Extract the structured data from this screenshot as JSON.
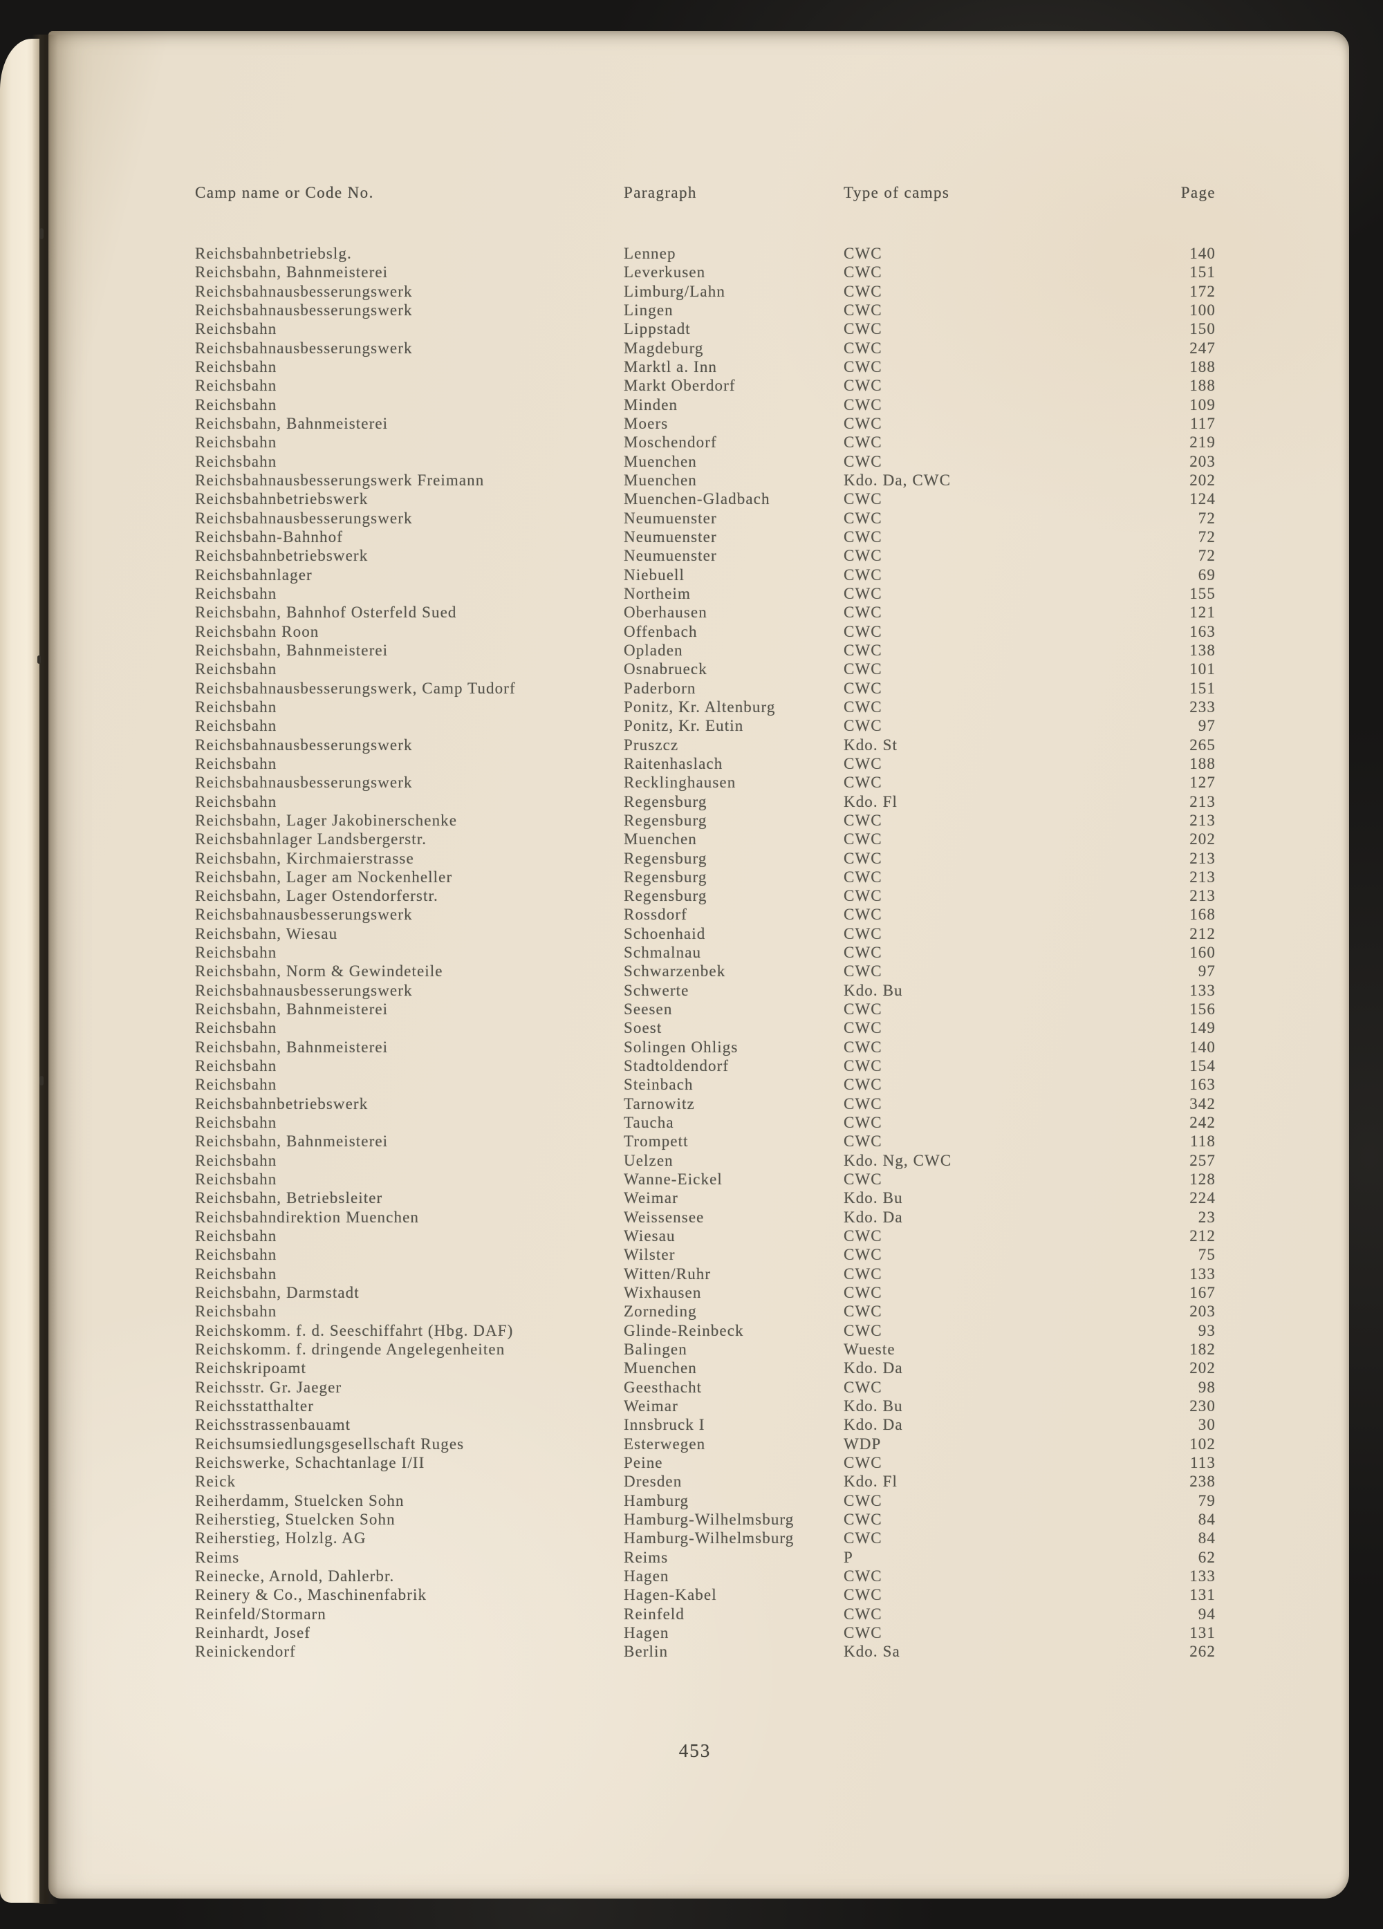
{
  "page": {
    "folio": "453"
  },
  "table": {
    "headers": [
      "Camp name or Code No.",
      "Paragraph",
      "Type of camps",
      "Page"
    ],
    "rows": [
      {
        "name": "Reichsbahnbetriebslg.",
        "paragraph": "Lennep",
        "type": "CWC",
        "page": "140"
      },
      {
        "name": "Reichsbahn, Bahnmeisterei",
        "paragraph": "Leverkusen",
        "type": "CWC",
        "page": "151"
      },
      {
        "name": "Reichsbahnausbesserungswerk",
        "paragraph": "Limburg/Lahn",
        "type": "CWC",
        "page": "172"
      },
      {
        "name": "Reichsbahnausbesserungswerk",
        "paragraph": "Lingen",
        "type": "CWC",
        "page": "100"
      },
      {
        "name": "Reichsbahn",
        "paragraph": "Lippstadt",
        "type": "CWC",
        "page": "150"
      },
      {
        "name": "Reichsbahnausbesserungswerk",
        "paragraph": "Magdeburg",
        "type": "CWC",
        "page": "247"
      },
      {
        "name": "Reichsbahn",
        "paragraph": "Marktl a. Inn",
        "type": "CWC",
        "page": "188"
      },
      {
        "name": "Reichsbahn",
        "paragraph": "Markt Oberdorf",
        "type": "CWC",
        "page": "188"
      },
      {
        "name": "Reichsbahn",
        "paragraph": "Minden",
        "type": "CWC",
        "page": "109"
      },
      {
        "name": "Reichsbahn, Bahnmeisterei",
        "paragraph": "Moers",
        "type": "CWC",
        "page": "117"
      },
      {
        "name": "Reichsbahn",
        "paragraph": "Moschendorf",
        "type": "CWC",
        "page": "219"
      },
      {
        "name": "Reichsbahn",
        "paragraph": "Muenchen",
        "type": "CWC",
        "page": "203"
      },
      {
        "name": "Reichsbahnausbesserungswerk Freimann",
        "paragraph": "Muenchen",
        "type": "Kdo. Da, CWC",
        "page": "202"
      },
      {
        "name": "Reichsbahnbetriebswerk",
        "paragraph": "Muenchen-Gladbach",
        "type": "CWC",
        "page": "124"
      },
      {
        "name": "Reichsbahnausbesserungswerk",
        "paragraph": "Neumuenster",
        "type": "CWC",
        "page": "72"
      },
      {
        "name": "Reichsbahn-Bahnhof",
        "paragraph": "Neumuenster",
        "type": "CWC",
        "page": "72"
      },
      {
        "name": "Reichsbahnbetriebswerk",
        "paragraph": "Neumuenster",
        "type": "CWC",
        "page": "72"
      },
      {
        "name": "Reichsbahnlager",
        "paragraph": "Niebuell",
        "type": "CWC",
        "page": "69"
      },
      {
        "name": "Reichsbahn",
        "paragraph": "Northeim",
        "type": "CWC",
        "page": "155"
      },
      {
        "name": "Reichsbahn, Bahnhof Osterfeld Sued",
        "paragraph": "Oberhausen",
        "type": "CWC",
        "page": "121"
      },
      {
        "name": "Reichsbahn Roon",
        "paragraph": "Offenbach",
        "type": "CWC",
        "page": "163"
      },
      {
        "name": "Reichsbahn, Bahnmeisterei",
        "paragraph": "Opladen",
        "type": "CWC",
        "page": "138"
      },
      {
        "name": "Reichsbahn",
        "paragraph": "Osnabrueck",
        "type": "CWC",
        "page": "101"
      },
      {
        "name": "Reichsbahnausbesserungswerk, Camp Tudorf",
        "paragraph": "Paderborn",
        "type": "CWC",
        "page": "151"
      },
      {
        "name": "Reichsbahn",
        "paragraph": "Ponitz, Kr. Altenburg",
        "type": "CWC",
        "page": "233"
      },
      {
        "name": "Reichsbahn",
        "paragraph": "Ponitz, Kr. Eutin",
        "type": "CWC",
        "page": "97"
      },
      {
        "name": "Reichsbahnausbesserungswerk",
        "paragraph": "Pruszcz",
        "type": "Kdo. St",
        "page": "265"
      },
      {
        "name": "Reichsbahn",
        "paragraph": "Raitenhaslach",
        "type": "CWC",
        "page": "188"
      },
      {
        "name": "Reichsbahnausbesserungswerk",
        "paragraph": "Recklinghausen",
        "type": "CWC",
        "page": "127"
      },
      {
        "name": "Reichsbahn",
        "paragraph": "Regensburg",
        "type": "Kdo. Fl",
        "page": "213"
      },
      {
        "name": "Reichsbahn, Lager Jakobinerschenke",
        "paragraph": "Regensburg",
        "type": "CWC",
        "page": "213"
      },
      {
        "name": "Reichsbahnlager Landsbergerstr.",
        "paragraph": "Muenchen",
        "type": "CWC",
        "page": "202"
      },
      {
        "name": "Reichsbahn, Kirchmaierstrasse",
        "paragraph": "Regensburg",
        "type": "CWC",
        "page": "213"
      },
      {
        "name": "Reichsbahn, Lager am Nockenheller",
        "paragraph": "Regensburg",
        "type": "CWC",
        "page": "213"
      },
      {
        "name": "Reichsbahn, Lager Ostendorferstr.",
        "paragraph": "Regensburg",
        "type": "CWC",
        "page": "213"
      },
      {
        "name": "Reichsbahnausbesserungswerk",
        "paragraph": "Rossdorf",
        "type": "CWC",
        "page": "168"
      },
      {
        "name": "Reichsbahn, Wiesau",
        "paragraph": "Schoenhaid",
        "type": "CWC",
        "page": "212"
      },
      {
        "name": "Reichsbahn",
        "paragraph": "Schmalnau",
        "type": "CWC",
        "page": "160"
      },
      {
        "name": "Reichsbahn, Norm & Gewindeteile",
        "paragraph": "Schwarzenbek",
        "type": "CWC",
        "page": "97"
      },
      {
        "name": "Reichsbahnausbesserungswerk",
        "paragraph": "Schwerte",
        "type": "Kdo. Bu",
        "page": "133"
      },
      {
        "name": "Reichsbahn, Bahnmeisterei",
        "paragraph": "Seesen",
        "type": "CWC",
        "page": "156"
      },
      {
        "name": "Reichsbahn",
        "paragraph": "Soest",
        "type": "CWC",
        "page": "149"
      },
      {
        "name": "Reichsbahn, Bahnmeisterei",
        "paragraph": "Solingen Ohligs",
        "type": "CWC",
        "page": "140"
      },
      {
        "name": "Reichsbahn",
        "paragraph": "Stadtoldendorf",
        "type": "CWC",
        "page": "154"
      },
      {
        "name": "Reichsbahn",
        "paragraph": "Steinbach",
        "type": "CWC",
        "page": "163"
      },
      {
        "name": "Reichsbahnbetriebswerk",
        "paragraph": "Tarnowitz",
        "type": "CWC",
        "page": "342"
      },
      {
        "name": "Reichsbahn",
        "paragraph": "Taucha",
        "type": "CWC",
        "page": "242"
      },
      {
        "name": "Reichsbahn, Bahnmeisterei",
        "paragraph": "Trompett",
        "type": "CWC",
        "page": "118"
      },
      {
        "name": "Reichsbahn",
        "paragraph": "Uelzen",
        "type": "Kdo. Ng, CWC",
        "page": "257"
      },
      {
        "name": "Reichsbahn",
        "paragraph": "Wanne-Eickel",
        "type": "CWC",
        "page": "128"
      },
      {
        "name": "Reichsbahn, Betriebsleiter",
        "paragraph": "Weimar",
        "type": "Kdo. Bu",
        "page": "224"
      },
      {
        "name": "Reichsbahndirektion Muenchen",
        "paragraph": "Weissensee",
        "type": "Kdo. Da",
        "page": "23"
      },
      {
        "name": "Reichsbahn",
        "paragraph": "Wiesau",
        "type": "CWC",
        "page": "212"
      },
      {
        "name": "Reichsbahn",
        "paragraph": "Wilster",
        "type": "CWC",
        "page": "75"
      },
      {
        "name": "Reichsbahn",
        "paragraph": "Witten/Ruhr",
        "type": "CWC",
        "page": "133"
      },
      {
        "name": "Reichsbahn, Darmstadt",
        "paragraph": "Wixhausen",
        "type": "CWC",
        "page": "167"
      },
      {
        "name": "Reichsbahn",
        "paragraph": "Zorneding",
        "type": "CWC",
        "page": "203"
      },
      {
        "name": "Reichskomm. f. d. Seeschiffahrt (Hbg. DAF)",
        "paragraph": "Glinde-Reinbeck",
        "type": "CWC",
        "page": "93"
      },
      {
        "name": "Reichskomm. f. dringende Angelegenheiten",
        "paragraph": "Balingen",
        "type": "Wueste",
        "page": "182"
      },
      {
        "name": "Reichskripoamt",
        "paragraph": "Muenchen",
        "type": "Kdo. Da",
        "page": "202"
      },
      {
        "name": "Reichsstr. Gr. Jaeger",
        "paragraph": "Geesthacht",
        "type": "CWC",
        "page": "98"
      },
      {
        "name": "Reichsstatthalter",
        "paragraph": "Weimar",
        "type": "Kdo. Bu",
        "page": "230"
      },
      {
        "name": "Reichsstrassenbauamt",
        "paragraph": "Innsbruck I",
        "type": "Kdo. Da",
        "page": "30"
      },
      {
        "name": "Reichsumsiedlungsgesellschaft Ruges",
        "paragraph": "Esterwegen",
        "type": "WDP",
        "page": "102"
      },
      {
        "name": "Reichswerke, Schachtanlage I/II",
        "paragraph": "Peine",
        "type": "CWC",
        "page": "113"
      },
      {
        "name": "Reick",
        "paragraph": "Dresden",
        "type": "Kdo. Fl",
        "page": "238"
      },
      {
        "name": "Reiherdamm, Stuelcken Sohn",
        "paragraph": "Hamburg",
        "type": "CWC",
        "page": "79"
      },
      {
        "name": "Reiherstieg, Stuelcken Sohn",
        "paragraph": "Hamburg-Wilhelmsburg",
        "type": "CWC",
        "page": "84"
      },
      {
        "name": "Reiherstieg, Holzlg. AG",
        "paragraph": "Hamburg-Wilhelmsburg",
        "type": "CWC",
        "page": "84"
      },
      {
        "name": "Reims",
        "paragraph": "Reims",
        "type": "P",
        "page": "62"
      },
      {
        "name": "Reinecke, Arnold, Dahlerbr.",
        "paragraph": "Hagen",
        "type": "CWC",
        "page": "133"
      },
      {
        "name": "Reinery & Co., Maschinenfabrik",
        "paragraph": "Hagen-Kabel",
        "type": "CWC",
        "page": "131"
      },
      {
        "name": "Reinfeld/Stormarn",
        "paragraph": "Reinfeld",
        "type": "CWC",
        "page": "94"
      },
      {
        "name": "Reinhardt, Josef",
        "paragraph": "Hagen",
        "type": "CWC",
        "page": "131"
      },
      {
        "name": "Reinickendorf",
        "paragraph": "Berlin",
        "type": "Kdo. Sa",
        "page": "262"
      }
    ]
  }
}
